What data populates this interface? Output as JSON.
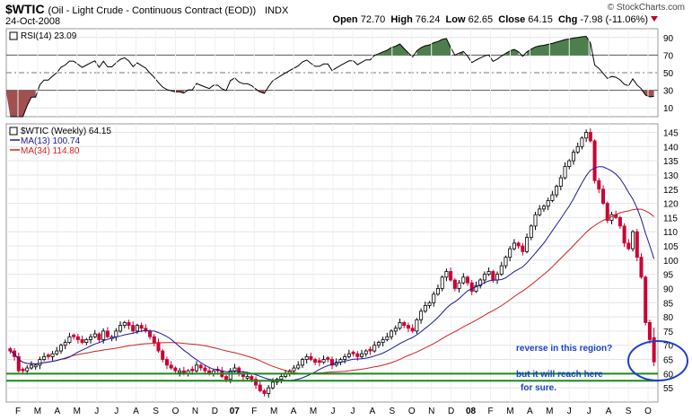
{
  "header": {
    "symbol": "$WTIC",
    "name": "(Oil - Light Crude - Continuous Contract (EOD))",
    "exchange": "INDX",
    "date": "24-Oct-2008",
    "brand": "© StockCharts.com",
    "open_label": "Open",
    "open": "72.70",
    "high_label": "High",
    "high": "76.24",
    "low_label": "Low",
    "low": "62.65",
    "close_label": "Close",
    "close": "64.15",
    "chg_label": "Chg",
    "chg": "-7.98 (-11.06%)"
  },
  "colors": {
    "up": "#000000",
    "down": "#cc0033",
    "ma13": "#1a1a99",
    "ma34": "#d42020",
    "annotation": "#1a3fcc",
    "support": "#1a8a1a",
    "rsi_fill": "#4d7f4d"
  },
  "rsi_panel": {
    "label": "RSI(14) 23.09",
    "ticks": [
      "90",
      "70",
      "50",
      "30",
      "10"
    ]
  },
  "price_panel": {
    "legend_symbol": "$WTIC (Weekly) 64.15",
    "legend_ma13": "MA(13) 100.74",
    "legend_ma34": "MA(34) 114.80",
    "ticks": [
      "145",
      "140",
      "135",
      "130",
      "125",
      "120",
      "115",
      "110",
      "105",
      "100",
      "95",
      "90",
      "85",
      "80",
      "75",
      "70",
      "65",
      "60",
      "55"
    ]
  },
  "x_axis_labels": [
    "F",
    "M",
    "A",
    "M",
    "J",
    "J",
    "A",
    "S",
    "O",
    "N",
    "D",
    "07",
    "F",
    "M",
    "A",
    "M",
    "J",
    "J",
    "A",
    "S",
    "O",
    "N",
    "D",
    "08",
    "F",
    "M",
    "A",
    "M",
    "J",
    "J",
    "A",
    "S",
    "O"
  ],
  "annotations": {
    "reverse": "reverse in this region?",
    "reach1": "but it will reach here",
    "reach2": "for sure."
  },
  "chart_data": {
    "type": "candlestick",
    "interval": "weekly",
    "x_start": "2006-02",
    "x_end": "2008-10-24",
    "y_range": [
      50,
      148
    ],
    "support_lines": [
      60,
      57.5
    ],
    "closes": [
      68,
      66,
      61,
      61,
      62,
      63,
      63,
      65,
      66,
      66,
      67,
      68,
      70,
      71,
      73,
      73,
      72,
      71,
      72,
      73,
      74,
      72,
      75,
      73,
      73,
      75,
      77,
      78,
      77,
      75,
      77,
      76,
      75,
      73,
      71,
      68,
      65,
      63,
      62,
      61,
      61,
      60,
      61,
      61,
      63,
      62,
      61,
      60,
      61,
      61,
      59,
      58,
      61,
      62,
      60,
      59,
      59,
      58,
      56,
      54,
      53,
      55,
      57,
      58,
      59,
      60,
      61,
      62,
      63,
      65,
      66,
      65,
      64,
      64,
      65,
      65,
      63,
      64,
      65,
      66,
      67,
      67,
      66,
      67,
      68,
      68,
      70,
      71,
      72,
      73,
      75,
      76,
      78,
      77,
      76,
      75,
      79,
      82,
      84,
      85,
      88,
      90,
      94,
      96,
      93,
      90,
      92,
      94,
      92,
      89,
      91,
      93,
      95,
      96,
      93,
      95,
      98,
      101,
      104,
      106,
      105,
      103,
      108,
      112,
      116,
      118,
      119,
      121,
      123,
      126,
      129,
      133,
      135,
      138,
      140,
      143,
      145,
      142,
      128,
      125,
      120,
      114,
      116,
      115,
      112,
      106,
      104,
      110,
      101,
      94,
      78,
      72,
      64.15
    ],
    "ma13_series": "MA(13) 100.74",
    "ma34_series": "MA(34) 114.80",
    "rsi14_last": 23.09,
    "last": {
      "open": 72.7,
      "high": 76.24,
      "low": 62.65,
      "close": 64.15,
      "chg": -7.98,
      "chg_pct": -11.06
    }
  }
}
